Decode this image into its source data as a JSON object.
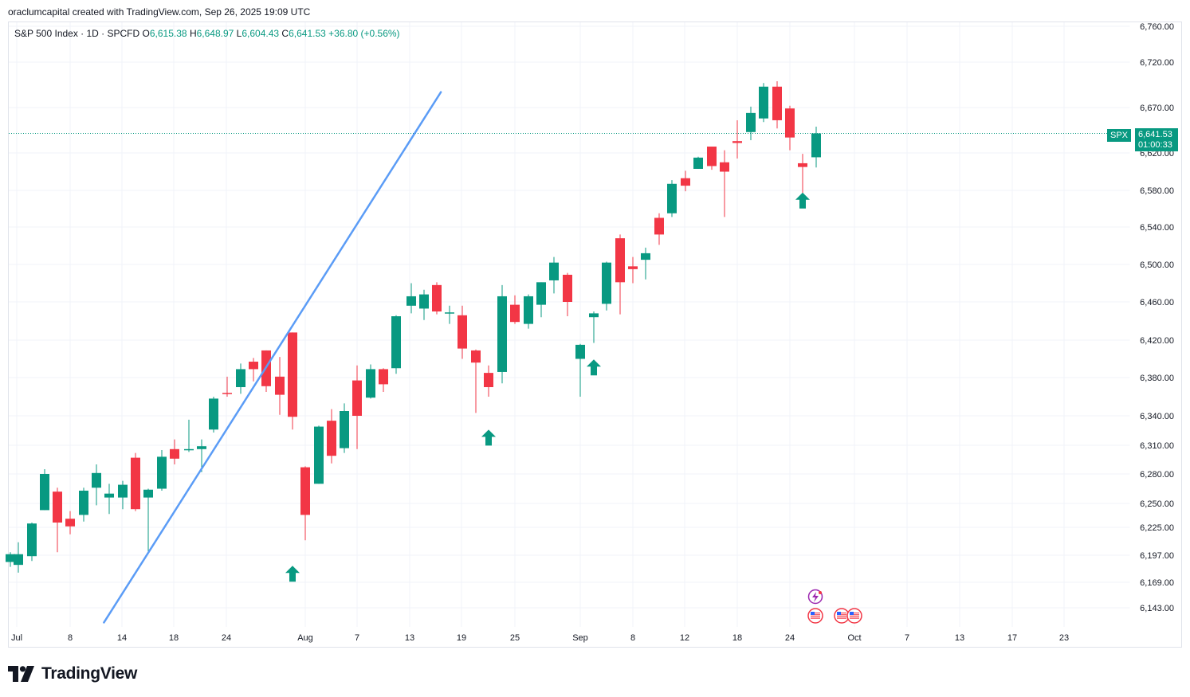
{
  "caption": "oraclumcapital created with TradingView.com, Sep 26, 2025 19:09 UTC",
  "brand": {
    "name": "TradingView"
  },
  "colors": {
    "up": "#089981",
    "down": "#f23645",
    "trendline": "#5b9cf6",
    "grid": "#f0f3fa",
    "arrow": "#089981"
  },
  "legend": {
    "symbol": "S&P 500 Index · 1D · SPCFD",
    "o_label": "O",
    "o": "6,615.38",
    "h_label": "H",
    "h": "6,648.97",
    "l_label": "L",
    "l": "6,604.43",
    "c_label": "C",
    "c": "6,641.53",
    "change": "+36.80 (+0.56%)"
  },
  "price_label": {
    "symbol": "SPX",
    "price": "6,641.53",
    "countdown": "01:00:33"
  },
  "chart_data": {
    "type": "candlestick",
    "title": "S&P 500 Index · 1D · SPCFD",
    "y_ticks": [
      {
        "value": 6143,
        "label": "6,143.00"
      },
      {
        "value": 6169,
        "label": "6,169.00"
      },
      {
        "value": 6197,
        "label": "6,197.00"
      },
      {
        "value": 6225,
        "label": "6,225.00"
      },
      {
        "value": 6250,
        "label": "6,250.00"
      },
      {
        "value": 6280,
        "label": "6,280.00"
      },
      {
        "value": 6310,
        "label": "6,310.00"
      },
      {
        "value": 6340,
        "label": "6,340.00"
      },
      {
        "value": 6380,
        "label": "6,380.00"
      },
      {
        "value": 6420,
        "label": "6,420.00"
      },
      {
        "value": 6460,
        "label": "6,460.00"
      },
      {
        "value": 6500,
        "label": "6,500.00"
      },
      {
        "value": 6540,
        "label": "6,540.00"
      },
      {
        "value": 6580,
        "label": "6,580.00"
      },
      {
        "value": 6620,
        "label": "6,620.00"
      },
      {
        "value": 6670,
        "label": "6,670.00"
      },
      {
        "value": 6720,
        "label": "6,720.00"
      },
      {
        "value": 6760,
        "label": "6,760.00"
      }
    ],
    "x_ticks": [
      {
        "day": 0,
        "label": "Jul"
      },
      {
        "day": 7,
        "label": "8"
      },
      {
        "day": 13,
        "label": "14"
      },
      {
        "day": 17,
        "label": "18"
      },
      {
        "day": 23,
        "label": "24"
      },
      {
        "day": 31,
        "label": "Aug"
      },
      {
        "day": 37,
        "label": "7"
      },
      {
        "day": 43,
        "label": "13"
      },
      {
        "day": 49,
        "label": "19"
      },
      {
        "day": 55,
        "label": "25"
      },
      {
        "day": 62,
        "label": "Sep"
      },
      {
        "day": 69,
        "label": "8"
      },
      {
        "day": 75,
        "label": "12"
      },
      {
        "day": 81,
        "label": "18"
      },
      {
        "day": 87,
        "label": "24"
      },
      {
        "day": 94,
        "label": "Oct"
      },
      {
        "day": 100,
        "label": "7"
      },
      {
        "day": 106,
        "label": "13"
      },
      {
        "day": 112,
        "label": "17"
      },
      {
        "day": 118,
        "label": "23"
      }
    ],
    "candles": [
      {
        "date": "Jun 30",
        "o": 6190,
        "h": 6200,
        "l": 6185,
        "c": 6198
      },
      {
        "date": "Jul 1",
        "o": 6187,
        "h": 6210,
        "l": 6179,
        "c": 6198
      },
      {
        "date": "Jul 2",
        "o": 6196,
        "h": 6230,
        "l": 6191,
        "c": 6229
      },
      {
        "date": "Jul 3",
        "o": 6243,
        "h": 6285,
        "l": 6243,
        "c": 6280
      },
      {
        "date": "Jul 7",
        "o": 6262,
        "h": 6266,
        "l": 6200,
        "c": 6230
      },
      {
        "date": "Jul 8",
        "o": 6234,
        "h": 6242,
        "l": 6218,
        "c": 6226
      },
      {
        "date": "Jul 9",
        "o": 6238,
        "h": 6266,
        "l": 6231,
        "c": 6263
      },
      {
        "date": "Jul 10",
        "o": 6266,
        "h": 6290,
        "l": 6248,
        "c": 6281
      },
      {
        "date": "Jul 11",
        "o": 6256,
        "h": 6270,
        "l": 6239,
        "c": 6260
      },
      {
        "date": "Jul 14",
        "o": 6256,
        "h": 6273,
        "l": 6244,
        "c": 6269
      },
      {
        "date": "Jul 15",
        "o": 6297,
        "h": 6302,
        "l": 6242,
        "c": 6244
      },
      {
        "date": "Jul 16",
        "o": 6256,
        "h": 6265,
        "l": 6201,
        "c": 6264
      },
      {
        "date": "Jul 17",
        "o": 6265,
        "h": 6305,
        "l": 6263,
        "c": 6298
      },
      {
        "date": "Jul 18",
        "o": 6306,
        "h": 6316,
        "l": 6290,
        "c": 6296
      },
      {
        "date": "Jul 21",
        "o": 6305,
        "h": 6336,
        "l": 6303,
        "c": 6306
      },
      {
        "date": "Jul 22",
        "o": 6306,
        "h": 6316,
        "l": 6282,
        "c": 6309
      },
      {
        "date": "Jul 23",
        "o": 6326,
        "h": 6360,
        "l": 6323,
        "c": 6358
      },
      {
        "date": "Jul 24",
        "o": 6364,
        "h": 6381,
        "l": 6360,
        "c": 6363
      },
      {
        "date": "Jul 25",
        "o": 6370,
        "h": 6395,
        "l": 6363,
        "c": 6389
      },
      {
        "date": "Jul 28",
        "o": 6397,
        "h": 6401,
        "l": 6376,
        "c": 6389
      },
      {
        "date": "Jul 29",
        "o": 6409,
        "h": 6409,
        "l": 6365,
        "c": 6371
      },
      {
        "date": "Jul 30",
        "o": 6381,
        "h": 6402,
        "l": 6341,
        "c": 6362
      },
      {
        "date": "Jul 31",
        "o": 6428,
        "h": 6428,
        "l": 6326,
        "c": 6339
      },
      {
        "date": "Aug 1",
        "o": 6287,
        "h": 6288,
        "l": 6212,
        "c": 6238
      },
      {
        "date": "Aug 4",
        "o": 6270,
        "h": 6330,
        "l": 6270,
        "c": 6329
      },
      {
        "date": "Aug 5",
        "o": 6335,
        "h": 6347,
        "l": 6291,
        "c": 6299
      },
      {
        "date": "Aug 6",
        "o": 6307,
        "h": 6353,
        "l": 6302,
        "c": 6345
      },
      {
        "date": "Aug 7",
        "o": 6377,
        "h": 6393,
        "l": 6306,
        "c": 6340
      },
      {
        "date": "Aug 8",
        "o": 6359,
        "h": 6394,
        "l": 6358,
        "c": 6389
      },
      {
        "date": "Aug 11",
        "o": 6389,
        "h": 6390,
        "l": 6365,
        "c": 6373
      },
      {
        "date": "Aug 12",
        "o": 6390,
        "h": 6446,
        "l": 6384,
        "c": 6445
      },
      {
        "date": "Aug 13",
        "o": 6456,
        "h": 6480,
        "l": 6448,
        "c": 6466
      },
      {
        "date": "Aug 14",
        "o": 6453,
        "h": 6473,
        "l": 6441,
        "c": 6468
      },
      {
        "date": "Aug 15",
        "o": 6478,
        "h": 6481,
        "l": 6447,
        "c": 6450
      },
      {
        "date": "Aug 18",
        "o": 6449,
        "h": 6456,
        "l": 6437,
        "c": 6449
      },
      {
        "date": "Aug 19",
        "o": 6446,
        "h": 6456,
        "l": 6400,
        "c": 6411
      },
      {
        "date": "Aug 20",
        "o": 6409,
        "h": 6410,
        "l": 6343,
        "c": 6396
      },
      {
        "date": "Aug 21",
        "o": 6385,
        "h": 6393,
        "l": 6360,
        "c": 6370
      },
      {
        "date": "Aug 22",
        "o": 6386,
        "h": 6478,
        "l": 6374,
        "c": 6466
      },
      {
        "date": "Aug 25",
        "o": 6457,
        "h": 6467,
        "l": 6437,
        "c": 6439
      },
      {
        "date": "Aug 26",
        "o": 6437,
        "h": 6468,
        "l": 6432,
        "c": 6466
      },
      {
        "date": "Aug 27",
        "o": 6457,
        "h": 6481,
        "l": 6444,
        "c": 6481
      },
      {
        "date": "Aug 28",
        "o": 6483,
        "h": 6508,
        "l": 6469,
        "c": 6502
      },
      {
        "date": "Aug 29",
        "o": 6489,
        "h": 6491,
        "l": 6445,
        "c": 6460
      },
      {
        "date": "Sep 2",
        "o": 6400,
        "h": 6416,
        "l": 6360,
        "c": 6415
      },
      {
        "date": "Sep 3",
        "o": 6444,
        "h": 6450,
        "l": 6417,
        "c": 6448
      },
      {
        "date": "Sep 4",
        "o": 6458,
        "h": 6503,
        "l": 6451,
        "c": 6502
      },
      {
        "date": "Sep 5",
        "o": 6528,
        "h": 6532,
        "l": 6447,
        "c": 6481
      },
      {
        "date": "Sep 8",
        "o": 6498,
        "h": 6508,
        "l": 6480,
        "c": 6495
      },
      {
        "date": "Sep 9",
        "o": 6505,
        "h": 6518,
        "l": 6484,
        "c": 6512
      },
      {
        "date": "Sep 10",
        "o": 6550,
        "h": 6555,
        "l": 6521,
        "c": 6532
      },
      {
        "date": "Sep 11",
        "o": 6555,
        "h": 6591,
        "l": 6551,
        "c": 6587
      },
      {
        "date": "Sep 12",
        "o": 6593,
        "h": 6601,
        "l": 6579,
        "c": 6585
      },
      {
        "date": "Sep 15",
        "o": 6603,
        "h": 6616,
        "l": 6603,
        "c": 6615
      },
      {
        "date": "Sep 16",
        "o": 6627,
        "h": 6627,
        "l": 6602,
        "c": 6606
      },
      {
        "date": "Sep 17",
        "o": 6610,
        "h": 6623,
        "l": 6551,
        "c": 6600
      },
      {
        "date": "Sep 18",
        "o": 6633,
        "h": 6656,
        "l": 6614,
        "c": 6631
      },
      {
        "date": "Sep 19",
        "o": 6643,
        "h": 6671,
        "l": 6634,
        "c": 6664
      },
      {
        "date": "Sep 22",
        "o": 6658,
        "h": 6697,
        "l": 6654,
        "c": 6693
      },
      {
        "date": "Sep 23",
        "o": 6693,
        "h": 6699,
        "l": 6647,
        "c": 6656
      },
      {
        "date": "Sep 24",
        "o": 6669,
        "h": 6672,
        "l": 6623,
        "c": 6637
      },
      {
        "date": "Sep 25",
        "o": 6609,
        "h": 6619,
        "l": 6569,
        "c": 6605
      },
      {
        "date": "Sep 26",
        "o": 6615.38,
        "h": 6648.97,
        "l": 6604.43,
        "c": 6641.53
      }
    ],
    "trendline": {
      "start_day": 20,
      "start_price": 6128,
      "end_day": 98,
      "end_price": 6687,
      "label": "ascending support trendline"
    },
    "signal_arrows": [
      {
        "day": 30,
        "price": 6177,
        "direction": "up"
      },
      {
        "day": 51,
        "price": 6317,
        "direction": "up"
      },
      {
        "day": 63,
        "price": 6390,
        "direction": "up"
      },
      {
        "day": 88,
        "price": 6568,
        "direction": "up"
      }
    ],
    "event_icons": [
      {
        "day": 88,
        "price": 6162,
        "kind": "lightning"
      },
      {
        "day": 88,
        "price": 6135,
        "kind": "flag"
      },
      {
        "day": 90,
        "price": 6135,
        "kind": "flag"
      },
      {
        "day": 91,
        "price": 6135,
        "kind": "flag"
      }
    ],
    "last_price": 6641.53
  }
}
